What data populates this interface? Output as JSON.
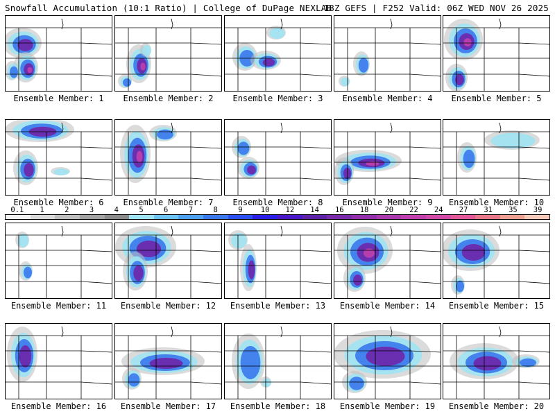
{
  "header": {
    "left": "Snowfall Accumulation (10:1 Ratio) | College of DuPage NEXLAB",
    "right": "18Z GEFS | F252 Valid: 06Z WED NOV 26 2025"
  },
  "colorbar": {
    "labels": [
      "0.1",
      "1",
      "2",
      "3",
      "4",
      "5",
      "6",
      "7",
      "8",
      "9",
      "10",
      "12",
      "14",
      "16",
      "18",
      "20",
      "22",
      "24",
      "27",
      "31",
      "35",
      "39"
    ],
    "colors": [
      "#f2f2f2",
      "#d8d8d8",
      "#bdbdbd",
      "#a3a3a3",
      "#8a8a8a",
      "#9fe3f2",
      "#6fc3f2",
      "#4fa0ef",
      "#3a78ec",
      "#2a4ff0",
      "#2b1fe6",
      "#4a18c8",
      "#5d22a6",
      "#7a2aa6",
      "#9130a8",
      "#a83aaa",
      "#c040ad",
      "#d24aa7",
      "#e05898",
      "#e7788a",
      "#eda090",
      "#f4c9b7"
    ]
  },
  "members": [
    {
      "label": "Ensemble Member: 1"
    },
    {
      "label": "Ensemble Member: 2"
    },
    {
      "label": "Ensemble Member: 3"
    },
    {
      "label": "Ensemble Member: 4"
    },
    {
      "label": "Ensemble Member: 5"
    },
    {
      "label": "Ensemble Member: 6"
    },
    {
      "label": "Ensemble Member: 7"
    },
    {
      "label": "Ensemble Member: 8"
    },
    {
      "label": "Ensemble Member: 9"
    },
    {
      "label": "Ensemble Member: 10"
    },
    {
      "label": "Ensemble Member: 11"
    },
    {
      "label": "Ensemble Member: 12"
    },
    {
      "label": "Ensemble Member: 13"
    },
    {
      "label": "Ensemble Member: 14"
    },
    {
      "label": "Ensemble Member: 15"
    },
    {
      "label": "Ensemble Member: 16"
    },
    {
      "label": "Ensemble Member: 17"
    },
    {
      "label": "Ensemble Member: 18"
    },
    {
      "label": "Ensemble Member: 19"
    },
    {
      "label": "Ensemble Member: 20"
    }
  ]
}
